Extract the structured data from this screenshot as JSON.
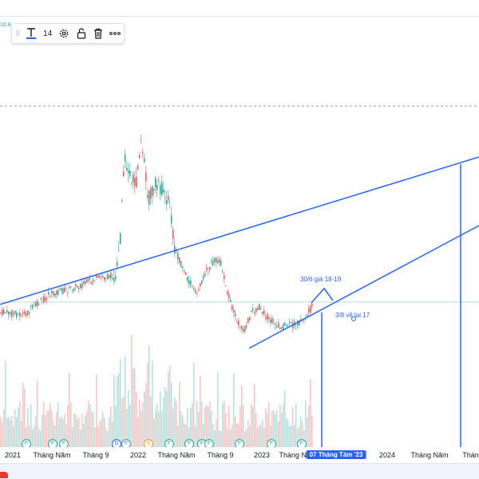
{
  "price_tag": "10.8",
  "toolbar": {
    "text_tool_icon": "text-T-icon",
    "font_size": "14",
    "settings_icon": "gear-icon",
    "lock_icon": "unlock-icon",
    "delete_icon": "trash-icon",
    "more_icon": "more-dots-icon"
  },
  "annotations": {
    "label_1": "30/6 giá 18-19",
    "label_2": "3/8 về lại 17"
  },
  "time_axis": {
    "ticks": [
      "2021",
      "Tháng Năm",
      "Tháng 9",
      "2022",
      "Tháng Năm",
      "Tháng 9",
      "2023",
      "Tháng Năm",
      "2024",
      "Tháng Năm",
      "Tháng"
    ],
    "selected": "07 Tháng Tám '23"
  },
  "events": [
    "F",
    "F",
    "F",
    "D",
    "F",
    "S",
    "F",
    "F",
    "F",
    "F",
    "F",
    "F",
    "F"
  ],
  "colors": {
    "up": "#26a69a",
    "down": "#ef5350",
    "trendline": "#2962ff",
    "accent": "#2962ff"
  }
}
